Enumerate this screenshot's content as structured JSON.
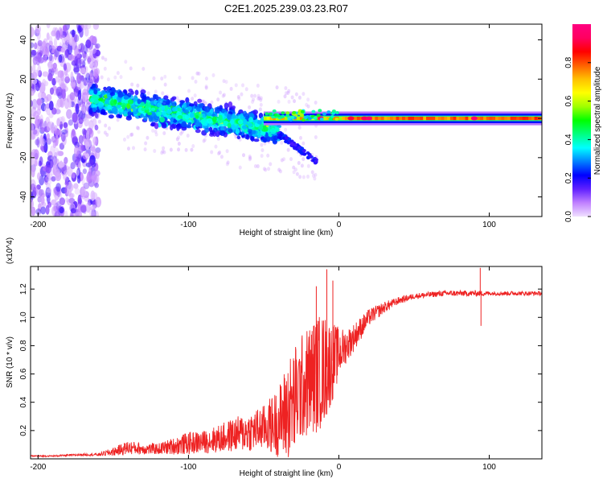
{
  "figure": {
    "title": "C2E1.2025.239.03.23.R07"
  },
  "chart_data": [
    {
      "type": "heatmap",
      "name": "spectrogram",
      "xlabel": "Height of straight line (km)",
      "ylabel": "Frequency (Hz)",
      "xlim": [
        -205,
        135
      ],
      "ylim": [
        -50,
        48
      ],
      "x_ticks": [
        -200,
        -100,
        0,
        100
      ],
      "y_ticks": [
        -40,
        -20,
        0,
        20,
        40
      ],
      "colorbar": {
        "label": "Normalized spectral amplitude",
        "range": [
          0,
          1
        ],
        "ticks": [
          0.0,
          0.2,
          0.4,
          0.6,
          0.8
        ],
        "tick_labels": [
          "0.0",
          "0.2",
          "0.4",
          "0.6",
          "0.8"
        ],
        "colormap": [
          "#f0e0ff",
          "#c080ff",
          "#6020ff",
          "#0000ff",
          "#0080ff",
          "#00ffff",
          "#00ff80",
          "#00ff00",
          "#a0ff00",
          "#ffff00",
          "#ffc000",
          "#ff6000",
          "#ff0000",
          "#ff0060",
          "#ff0080"
        ]
      },
      "features": {
        "noise_region_x": [
          -205,
          -160
        ],
        "scatter_band": {
          "x": [
            -165,
            -40
          ],
          "center_start": 10,
          "center_end": -6,
          "half_width": 10
        },
        "branch": {
          "x": [
            -40,
            -15
          ],
          "y": [
            -8,
            -22
          ]
        },
        "carrier_line": {
          "x": [
            -50,
            135
          ],
          "y": 0,
          "peak_amplitude": 0.95
        }
      }
    },
    {
      "type": "line",
      "name": "snr",
      "xlabel": "Height of straight line (km)",
      "ylabel": "SNR (10 * v/v)",
      "scale_label": "(x10^4)",
      "xlim": [
        -205,
        135
      ],
      "ylim": [
        0,
        1.36
      ],
      "x_ticks": [
        -200,
        -100,
        0,
        100
      ],
      "y_ticks": [
        0.2,
        0.4,
        0.6,
        0.8,
        1.0,
        1.2
      ],
      "series": [
        {
          "name": "SNR",
          "color": "#ee2222",
          "x": [
            -205,
            -190,
            -170,
            -160,
            -150,
            -140,
            -130,
            -120,
            -110,
            -100,
            -90,
            -80,
            -70,
            -60,
            -50,
            -40,
            -35,
            -30,
            -25,
            -20,
            -15,
            -10,
            -5,
            0,
            5,
            10,
            15,
            20,
            30,
            40,
            50,
            60,
            70,
            80,
            90,
            95,
            100,
            110,
            120,
            135
          ],
          "y": [
            0.02,
            0.02,
            0.03,
            0.03,
            0.05,
            0.08,
            0.07,
            0.07,
            0.09,
            0.11,
            0.12,
            0.14,
            0.17,
            0.19,
            0.22,
            0.26,
            0.33,
            0.4,
            0.5,
            0.55,
            0.6,
            0.63,
            0.68,
            0.75,
            0.8,
            0.86,
            0.93,
            1.0,
            1.07,
            1.12,
            1.15,
            1.16,
            1.17,
            1.17,
            1.17,
            1.17,
            1.17,
            1.17,
            1.17,
            1.17
          ],
          "noise": [
            0.005,
            0.005,
            0.008,
            0.01,
            0.03,
            0.05,
            0.04,
            0.04,
            0.06,
            0.08,
            0.08,
            0.1,
            0.12,
            0.14,
            0.16,
            0.25,
            0.35,
            0.4,
            0.38,
            0.4,
            0.42,
            0.4,
            0.3,
            0.18,
            0.12,
            0.1,
            0.08,
            0.06,
            0.04,
            0.025,
            0.02,
            0.02,
            0.02,
            0.02,
            0.02,
            0.02,
            0.015,
            0.015,
            0.015,
            0.015
          ],
          "spikes": [
            {
              "x": -8,
              "y": 1.34
            },
            {
              "x": -4,
              "y": 1.26
            },
            {
              "x": -15,
              "y": 1.22
            },
            {
              "x": 94,
              "y": 1.35
            },
            {
              "x": 94.5,
              "y": 0.94
            }
          ]
        }
      ]
    }
  ]
}
